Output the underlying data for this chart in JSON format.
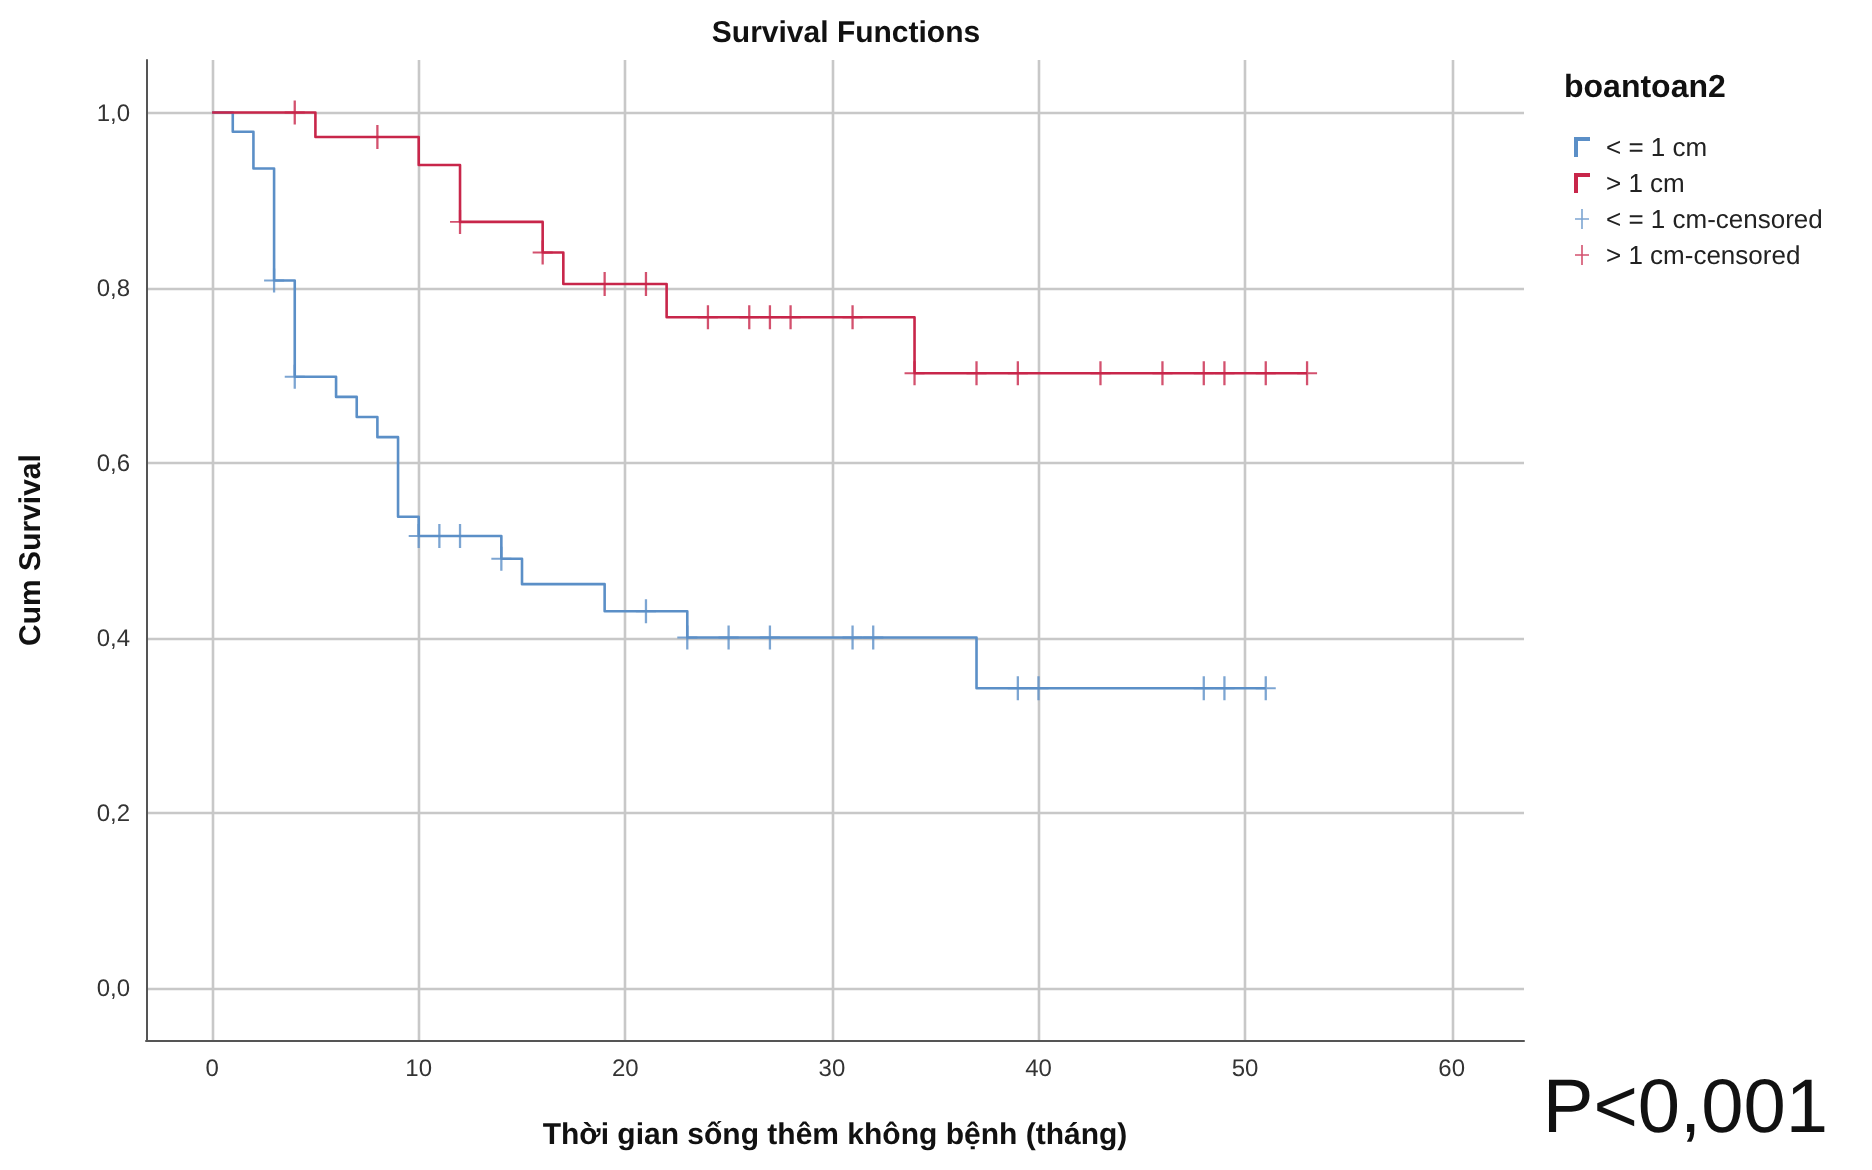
{
  "chart_data": {
    "type": "step",
    "title": "Survival Functions",
    "xlabel": "Thời gian sống thêm không bệnh (tháng)",
    "ylabel": "Cum Survival",
    "legend_title": "boantoan2",
    "legend": "top right",
    "grid": true,
    "marker": "cross",
    "xlim": [
      -3.2,
      63.5
    ],
    "xticks": [
      0,
      10,
      20,
      30,
      40,
      50,
      60
    ],
    "ylim": [
      -0.06,
      1.06
    ],
    "yticks": [
      {
        "value": 0,
        "label": "0,0"
      },
      {
        "value": 0.2,
        "label": "0,2"
      },
      {
        "value": 0.4,
        "label": "0,4"
      },
      {
        "value": 0.6,
        "label": "0,6"
      },
      {
        "value": 0.8,
        "label": "0,8"
      },
      {
        "value": 1,
        "label": "1,0"
      }
    ],
    "annotations": [
      "P<0,001"
    ],
    "series": [
      {
        "name": "< = 1 cm",
        "marker": "none",
        "color": "#5b8fc7",
        "x": [
          0,
          1,
          2,
          3,
          4,
          6,
          7,
          8,
          9,
          10,
          14,
          15,
          19,
          23,
          37,
          51
        ],
        "values": [
          1,
          0.978,
          0.936,
          0.808,
          0.698,
          0.675,
          0.652,
          0.629,
          0.538,
          0.516,
          0.49,
          0.461,
          0.43,
          0.4,
          0.342,
          0.342
        ]
      },
      {
        "name": "> 1 cm",
        "marker": "none",
        "color": "#c8264a",
        "x": [
          0,
          5,
          10,
          12,
          16,
          17,
          22,
          34,
          53
        ],
        "values": [
          1,
          0.972,
          0.94,
          0.875,
          0.84,
          0.804,
          0.766,
          0.702,
          0.702
        ]
      },
      {
        "name": "< = 1 cm-censored",
        "type": "scatter",
        "color": "#5b8fc7",
        "x": [
          3,
          4,
          10,
          11,
          12,
          14,
          21,
          23,
          25,
          27,
          31,
          32,
          39,
          40,
          48,
          49,
          51
        ],
        "values": [
          0.808,
          0.698,
          0.516,
          0.516,
          0.516,
          0.49,
          0.43,
          0.4,
          0.4,
          0.4,
          0.4,
          0.4,
          0.342,
          0.342,
          0.342,
          0.342,
          0.342
        ]
      },
      {
        "name": "> 1 cm-censored",
        "type": "scatter",
        "color": "#c8264a",
        "x": [
          4,
          8,
          12,
          16,
          19,
          21,
          24,
          26,
          27,
          28,
          31,
          34,
          37,
          39,
          43,
          46,
          48,
          49,
          51,
          53
        ],
        "values": [
          1,
          0.972,
          0.875,
          0.84,
          0.804,
          0.804,
          0.766,
          0.766,
          0.766,
          0.766,
          0.766,
          0.702,
          0.702,
          0.702,
          0.702,
          0.702,
          0.702,
          0.702,
          0.702,
          0.702
        ]
      }
    ]
  }
}
